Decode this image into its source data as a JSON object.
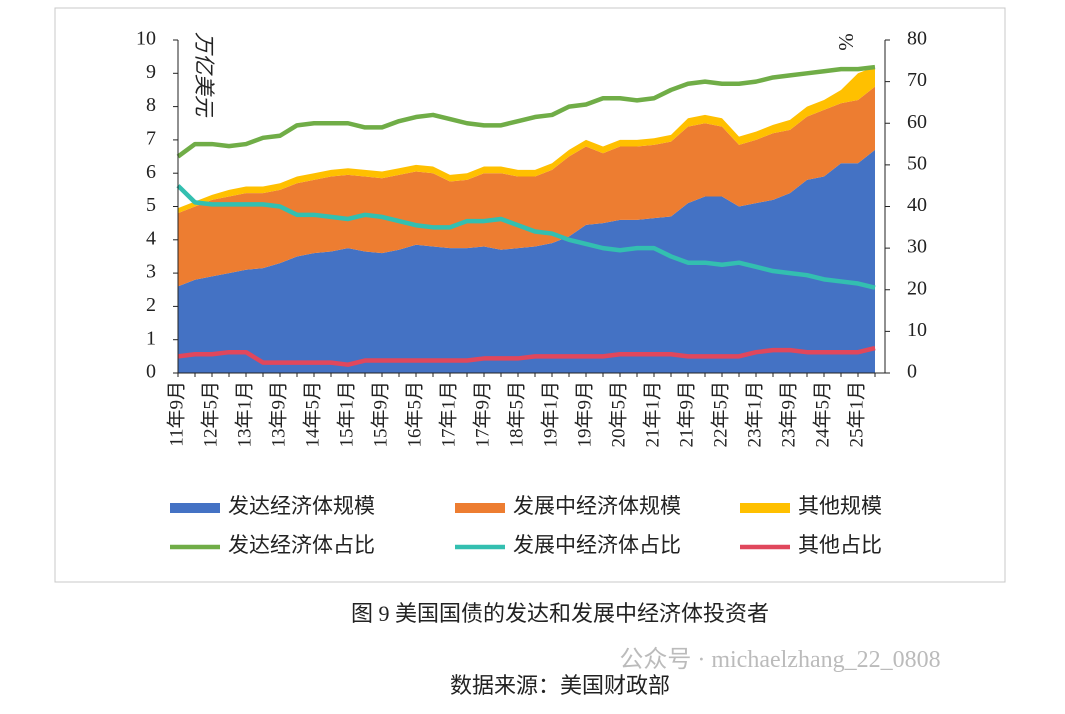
{
  "chart_data": {
    "type": "area",
    "y_label": "万亿美元",
    "y2_label": "%",
    "categories": [
      "11年9月",
      null,
      "12年5月",
      null,
      "13年1月",
      null,
      "13年9月",
      null,
      "14年5月",
      null,
      "15年1月",
      null,
      "15年9月",
      null,
      "16年5月",
      null,
      "17年1月",
      null,
      "17年9月",
      null,
      "18年5月",
      null,
      "19年1月",
      null,
      "19年9月",
      null,
      "20年5月",
      null,
      "21年1月",
      null,
      "21年9月",
      null,
      "22年5月",
      null,
      "23年1月",
      null,
      "23年9月",
      null,
      "24年5月",
      null,
      "25年1月",
      null
    ],
    "series": [
      {
        "name": "发达经济体规模",
        "mark": "area",
        "color": "#4472c4",
        "values": [
          2.6,
          2.8,
          2.9,
          3.0,
          3.1,
          3.15,
          3.3,
          3.5,
          3.6,
          3.65,
          3.75,
          3.65,
          3.6,
          3.7,
          3.85,
          3.8,
          3.75,
          3.75,
          3.8,
          3.7,
          3.75,
          3.8,
          3.9,
          4.1,
          4.45,
          4.5,
          4.6,
          4.6,
          4.65,
          4.7,
          5.1,
          5.3,
          5.3,
          5.0,
          5.1,
          5.2,
          5.4,
          5.8,
          5.9,
          6.3,
          6.3,
          6.7
        ]
      },
      {
        "name": "发展中经济体规模",
        "mark": "area",
        "color": "#ed7d31",
        "values": [
          2.2,
          2.2,
          2.3,
          2.3,
          2.3,
          2.25,
          2.2,
          2.2,
          2.2,
          2.25,
          2.2,
          2.25,
          2.25,
          2.25,
          2.2,
          2.2,
          2.0,
          2.05,
          2.2,
          2.3,
          2.15,
          2.1,
          2.2,
          2.4,
          2.35,
          2.1,
          2.2,
          2.2,
          2.2,
          2.25,
          2.3,
          2.2,
          2.1,
          1.85,
          1.9,
          2.0,
          1.9,
          1.9,
          2.0,
          1.8,
          1.9,
          1.9
        ]
      },
      {
        "name": "其他规模",
        "mark": "area",
        "color": "#ffc000",
        "values": [
          0.15,
          0.15,
          0.15,
          0.2,
          0.2,
          0.2,
          0.2,
          0.2,
          0.2,
          0.2,
          0.2,
          0.2,
          0.2,
          0.2,
          0.2,
          0.2,
          0.2,
          0.2,
          0.2,
          0.2,
          0.2,
          0.2,
          0.2,
          0.2,
          0.2,
          0.2,
          0.2,
          0.2,
          0.2,
          0.2,
          0.25,
          0.25,
          0.25,
          0.25,
          0.25,
          0.25,
          0.3,
          0.3,
          0.3,
          0.4,
          0.8,
          0.6
        ]
      },
      {
        "name": "发达经济体占比",
        "mark": "line",
        "axis": "y2",
        "color": "#70ad47",
        "values": [
          52,
          55,
          55,
          54.5,
          55,
          56.5,
          57,
          59.5,
          60,
          60,
          60,
          59,
          59,
          60.5,
          61.5,
          62,
          61,
          60,
          59.5,
          59.5,
          60.5,
          61.5,
          62,
          64,
          64.5,
          66,
          66,
          65.5,
          66,
          68,
          69.5,
          70,
          69.5,
          69.5,
          70,
          71,
          71.5,
          72,
          72.5,
          73,
          73,
          73.5
        ]
      },
      {
        "name": "发展中经济体占比",
        "mark": "line",
        "axis": "y2",
        "color": "#33bfb0",
        "values": [
          45,
          41,
          40.5,
          40.5,
          40.5,
          40.5,
          40,
          38,
          38,
          37.5,
          37,
          38,
          37.5,
          36.5,
          35.5,
          35,
          35,
          36.5,
          36.5,
          37,
          35.5,
          34,
          33.5,
          32,
          31,
          30,
          29.5,
          30,
          30,
          28,
          26.5,
          26.5,
          26,
          26.5,
          25.5,
          24.5,
          24,
          23.5,
          22.5,
          22,
          21.5,
          20.5
        ]
      },
      {
        "name": "其他占比",
        "mark": "line",
        "axis": "y2",
        "color": "#e0475c",
        "values": [
          4,
          4.5,
          4.5,
          5,
          5,
          2.5,
          2.5,
          2.5,
          2.5,
          2.5,
          2,
          3,
          3,
          3,
          3,
          3,
          3,
          3,
          3.5,
          3.5,
          3.5,
          4,
          4,
          4,
          4,
          4,
          4.5,
          4.5,
          4.5,
          4.5,
          4,
          4,
          4,
          4,
          5,
          5.5,
          5.5,
          5,
          5,
          5,
          5,
          6
        ]
      }
    ],
    "ylim": [
      0,
      10
    ],
    "yticks": [
      0,
      1,
      2,
      3,
      4,
      5,
      6,
      7,
      8,
      9,
      10
    ],
    "y2lim": [
      0,
      80
    ],
    "y2ticks": [
      0,
      10,
      20,
      30,
      40,
      50,
      60,
      70,
      80
    ]
  },
  "caption": "图 9  美国国债的发达和发展中经济体投资者",
  "source": "数据来源：美国财政部",
  "watermark": "公众号 · michaelzhang_22_0808"
}
